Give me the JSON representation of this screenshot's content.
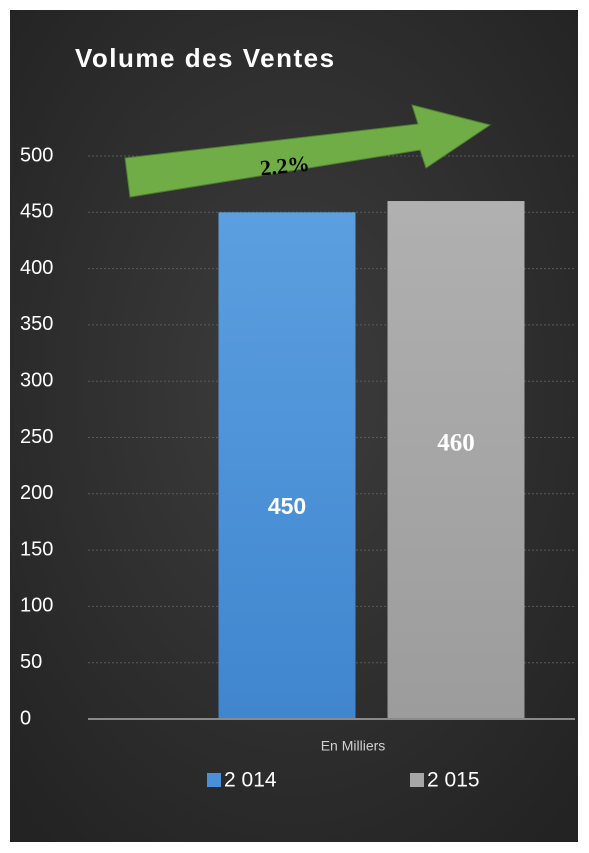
{
  "chart_data": {
    "type": "bar",
    "title": "Volume des Ventes",
    "categories": [
      "En Milliers"
    ],
    "series": [
      {
        "name": "2 014",
        "color": "#4a90d9",
        "values": [
          450
        ]
      },
      {
        "name": "2 015",
        "color": "#a6a6a6",
        "values": [
          460
        ]
      }
    ],
    "annotation": "2.2%",
    "ylim": [
      0,
      500
    ],
    "yticks": [
      0,
      50,
      100,
      150,
      200,
      250,
      300,
      350,
      400,
      450,
      500
    ],
    "grid": true,
    "legend": "bottom"
  }
}
